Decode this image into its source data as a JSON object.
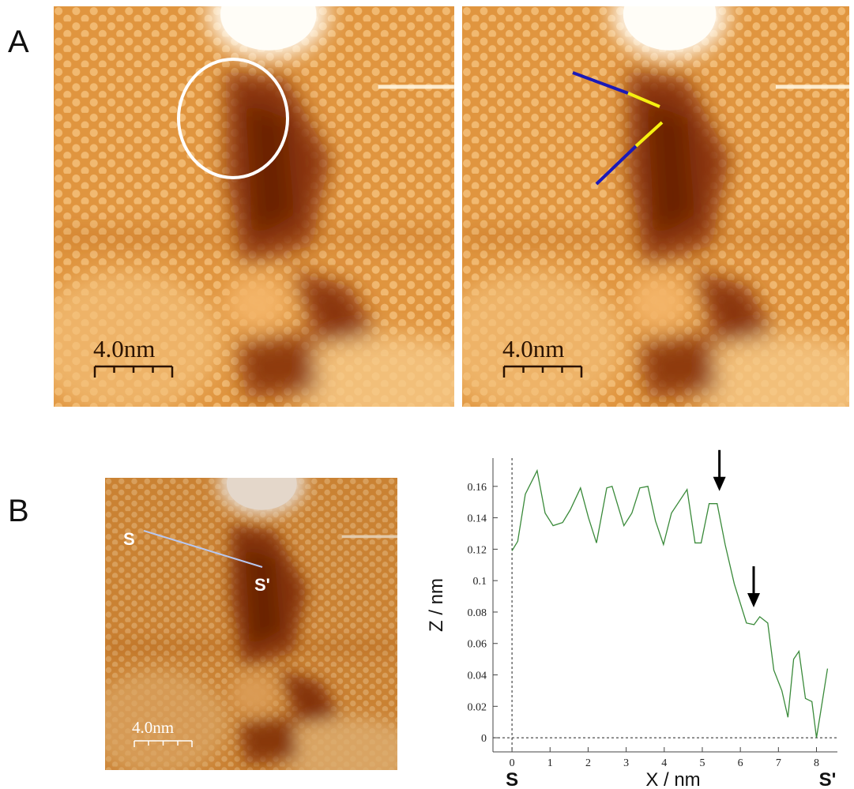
{
  "panels": {
    "a": {
      "label": "A",
      "scale_bars": [
        "4.0nm",
        "4.0nm"
      ]
    },
    "b": {
      "label": "B",
      "scale_bar": "4.0nm",
      "line_start": "S",
      "line_end": "S'"
    }
  },
  "chart_data": {
    "type": "line",
    "xlabel": "X / nm",
    "ylabel": "Z / nm",
    "x": [
      0,
      0.15,
      0.35,
      0.66,
      0.87,
      1.08,
      1.33,
      1.53,
      1.8,
      2.01,
      2.22,
      2.49,
      2.63,
      2.94,
      3.15,
      3.36,
      3.57,
      3.77,
      3.98,
      4.19,
      4.6,
      4.81,
      4.97,
      5.18,
      5.39,
      5.6,
      5.84,
      6.16,
      6.36,
      6.51,
      6.72,
      6.88,
      7.09,
      7.25,
      7.4,
      7.54,
      7.71,
      7.88,
      8.0,
      8.12,
      8.29
    ],
    "series": [
      {
        "color": "#3a8a3a",
        "values": [
          0.119,
          0.125,
          0.155,
          0.17,
          0.143,
          0.135,
          0.137,
          0.145,
          0.159,
          0.14,
          0.124,
          0.159,
          0.16,
          0.135,
          0.143,
          0.159,
          0.16,
          0.138,
          0.123,
          0.143,
          0.158,
          0.124,
          0.124,
          0.149,
          0.149,
          0.123,
          0.098,
          0.073,
          0.072,
          0.077,
          0.073,
          0.043,
          0.03,
          0.013,
          0.05,
          0.055,
          0.025,
          0.023,
          0,
          0.018,
          0.044
        ]
      }
    ],
    "xlim": [
      -0.5,
      8.55
    ],
    "ylim": [
      -0.009,
      0.178
    ],
    "xticks": [
      0,
      1,
      2,
      3,
      4,
      5,
      6,
      7,
      8
    ],
    "yticks": [
      0,
      0.02,
      0.04,
      0.06,
      0.08,
      0.1,
      0.12,
      0.14,
      0.16
    ],
    "x_end_labels": [
      "S",
      "S'"
    ],
    "arrows": [
      {
        "x": 5.45,
        "y": 0.157
      },
      {
        "x": 6.35,
        "y": 0.083
      }
    ]
  }
}
